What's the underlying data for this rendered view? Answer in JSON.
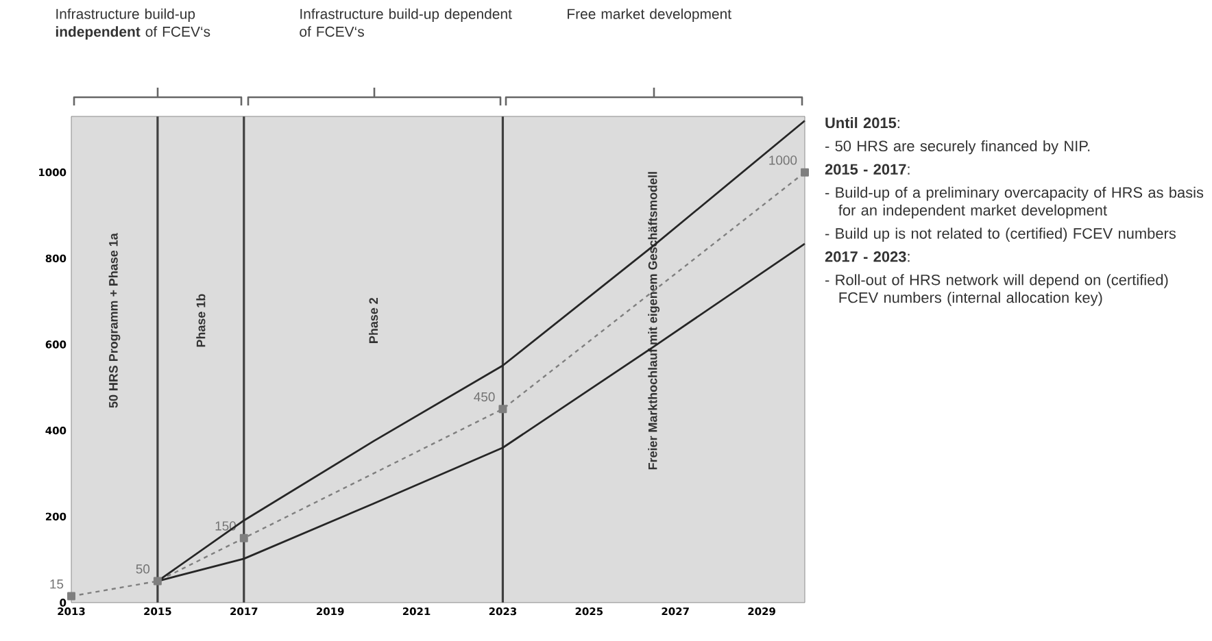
{
  "chart_data": {
    "type": "line",
    "xlim": [
      2013,
      2030
    ],
    "ylim": [
      0,
      1130
    ],
    "xticks": [
      2013,
      2015,
      2017,
      2019,
      2021,
      2023,
      2025,
      2027,
      2029
    ],
    "yticks": [
      0,
      200,
      400,
      600,
      800,
      1000
    ],
    "series": [
      {
        "color": "#7f7f7f",
        "marker": "square",
        "line_style": "dashed",
        "x": [
          2013,
          2015,
          2017,
          2023,
          2030
        ],
        "values": [
          15,
          50,
          150,
          450,
          1000
        ],
        "value_labels": [
          "15",
          "50",
          "150",
          "450",
          "1000"
        ]
      },
      {
        "color": "#262626",
        "marker": "none",
        "line_style": "solid",
        "x": [
          2015,
          2017,
          2020,
          2023,
          2026.5,
          2030
        ],
        "values": [
          50,
          191,
          375,
          551,
          830,
          1120
        ]
      },
      {
        "color": "#262626",
        "marker": "none",
        "line_style": "solid",
        "x": [
          2015,
          2017,
          2020,
          2023,
          2026.5,
          2030
        ],
        "values": [
          50,
          102,
          230,
          360,
          595,
          834
        ]
      }
    ],
    "bands": [
      {
        "axis": "x",
        "from": 2013,
        "to": 2015,
        "color": "#dcdcdc",
        "label": "50 HRS Programm + Phase 1a"
      },
      {
        "axis": "x",
        "from": 2015,
        "to": 2017,
        "color": "#dcdcdc",
        "label": "Phase 1b"
      },
      {
        "axis": "x",
        "from": 2017,
        "to": 2023,
        "color": "#dcdcdc",
        "label": "Phase 2"
      },
      {
        "axis": "x",
        "from": 2023,
        "to": 2030,
        "color": "#dcdcdc",
        "label": "Freier Markthochlauf mit eigenem Geschäftsmodell"
      }
    ],
    "ref_lines": [
      {
        "axis": "x",
        "value": 2015,
        "color": "#404040"
      },
      {
        "axis": "x",
        "value": 2017,
        "color": "#404040"
      },
      {
        "axis": "x",
        "value": 2023,
        "color": "#404040"
      }
    ],
    "annotations": [
      "Infrastructure build-up **independent** of FCEV‘s",
      "Infrastructure build-up dependent of FCEV‘s",
      "Free market development",
      "**Until 2015**:",
      "- 50 HRS are securely financed by NIP.",
      "**2015 - 2017**:",
      "- Build-up of a preliminary overcapacity of HRS as basis for an independent market development",
      "- Build up is not related to (certified) FCEV numbers",
      "**2017 - 2023**:",
      "- Roll-out of HRS network will depend on (certified) FCEV numbers (internal allocation key)"
    ]
  }
}
